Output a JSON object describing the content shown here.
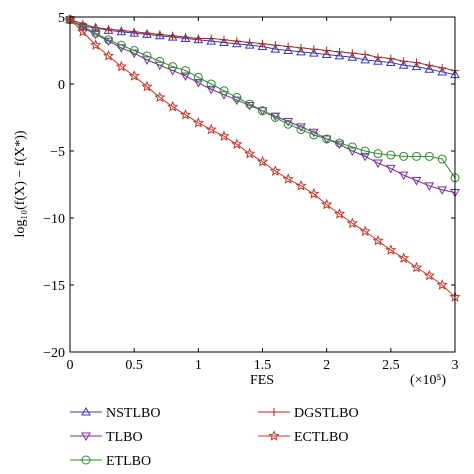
{
  "chart_data": {
    "type": "line",
    "xlabel": "FES",
    "x_multiplier": "(×10⁵)",
    "ylabel": "log₁₀(f(X) − f(X*))",
    "xlim": [
      0,
      3
    ],
    "ylim": [
      -20,
      5
    ],
    "x_ticks": [
      0,
      0.5,
      1,
      1.5,
      2,
      2.5,
      3
    ],
    "y_ticks": [
      5,
      0,
      -5,
      -10,
      -15,
      -20
    ],
    "x_tick_labels": [
      "0",
      "0.5",
      "1",
      "1.5",
      "2",
      "2.5",
      "3"
    ],
    "y_tick_labels": [
      "5",
      "0",
      "−5",
      "−10",
      "−15",
      "−20"
    ],
    "legend_position": "bottom",
    "series": [
      {
        "name": "NSTLBO",
        "color": "#3a3aa8",
        "marker": "triangle-up",
        "x": [
          0,
          0.1,
          0.2,
          0.3,
          0.4,
          0.5,
          0.6,
          0.7,
          0.8,
          0.9,
          1.0,
          1.1,
          1.2,
          1.3,
          1.4,
          1.5,
          1.6,
          1.7,
          1.8,
          1.9,
          2.0,
          2.1,
          2.2,
          2.3,
          2.4,
          2.5,
          2.6,
          2.7,
          2.8,
          2.9,
          3.0
        ],
        "y": [
          4.8,
          4.3,
          4.2,
          4.0,
          3.9,
          3.8,
          3.7,
          3.6,
          3.5,
          3.4,
          3.3,
          3.2,
          3.1,
          3.0,
          2.9,
          2.8,
          2.6,
          2.5,
          2.4,
          2.3,
          2.2,
          2.1,
          2.0,
          1.8,
          1.7,
          1.6,
          1.4,
          1.3,
          1.1,
          0.9,
          0.7
        ]
      },
      {
        "name": "TLBO",
        "color": "#7b2f9e",
        "marker": "triangle-down",
        "x": [
          0,
          0.1,
          0.2,
          0.3,
          0.4,
          0.5,
          0.6,
          0.7,
          0.8,
          0.9,
          1.0,
          1.1,
          1.2,
          1.3,
          1.4,
          1.5,
          1.6,
          1.7,
          1.8,
          1.9,
          2.0,
          2.1,
          2.2,
          2.3,
          2.4,
          2.5,
          2.6,
          2.7,
          2.8,
          2.9,
          3.0
        ],
        "y": [
          4.8,
          4.2,
          3.7,
          3.2,
          2.7,
          2.3,
          1.8,
          1.4,
          1.0,
          0.6,
          0.1,
          -0.4,
          -0.8,
          -1.2,
          -1.6,
          -2.0,
          -2.4,
          -2.8,
          -3.2,
          -3.6,
          -4.1,
          -4.5,
          -5.0,
          -5.4,
          -5.9,
          -6.3,
          -6.8,
          -7.2,
          -7.6,
          -7.9,
          -8.1
        ]
      },
      {
        "name": "ETLBO",
        "color": "#2e8b2e",
        "marker": "circle",
        "x": [
          0,
          0.1,
          0.2,
          0.3,
          0.4,
          0.5,
          0.6,
          0.7,
          0.8,
          0.9,
          1.0,
          1.1,
          1.2,
          1.3,
          1.4,
          1.5,
          1.6,
          1.7,
          1.8,
          1.9,
          2.0,
          2.1,
          2.2,
          2.3,
          2.4,
          2.5,
          2.6,
          2.7,
          2.8,
          2.9,
          3.0
        ],
        "y": [
          4.8,
          4.3,
          3.8,
          3.3,
          2.9,
          2.5,
          2.1,
          1.7,
          1.3,
          1.0,
          0.5,
          0.0,
          -0.5,
          -1.0,
          -1.5,
          -2.0,
          -2.5,
          -3.0,
          -3.4,
          -3.8,
          -4.1,
          -4.4,
          -4.7,
          -5.0,
          -5.2,
          -5.3,
          -5.4,
          -5.4,
          -5.4,
          -5.6,
          -7.0
        ]
      },
      {
        "name": "DGSTLBO",
        "color": "#a52a2a",
        "marker": "plus",
        "x": [
          0,
          0.1,
          0.2,
          0.3,
          0.4,
          0.5,
          0.6,
          0.7,
          0.8,
          0.9,
          1.0,
          1.1,
          1.2,
          1.3,
          1.4,
          1.5,
          1.6,
          1.7,
          1.8,
          1.9,
          2.0,
          2.1,
          2.2,
          2.3,
          2.4,
          2.5,
          2.6,
          2.7,
          2.8,
          2.9,
          3.0
        ],
        "y": [
          4.8,
          4.5,
          4.2,
          4.1,
          4.0,
          3.9,
          3.8,
          3.7,
          3.6,
          3.5,
          3.4,
          3.4,
          3.3,
          3.2,
          3.1,
          3.0,
          2.9,
          2.8,
          2.7,
          2.6,
          2.5,
          2.4,
          2.3,
          2.2,
          2.0,
          1.9,
          1.7,
          1.6,
          1.4,
          1.2,
          1.0
        ]
      },
      {
        "name": "ECTLBO",
        "color": "#c0392b",
        "marker": "star",
        "x": [
          0,
          0.1,
          0.2,
          0.3,
          0.4,
          0.5,
          0.6,
          0.7,
          0.8,
          0.9,
          1.0,
          1.1,
          1.2,
          1.3,
          1.4,
          1.5,
          1.6,
          1.7,
          1.8,
          1.9,
          2.0,
          2.1,
          2.2,
          2.3,
          2.4,
          2.5,
          2.6,
          2.7,
          2.8,
          2.9,
          3.0
        ],
        "y": [
          4.8,
          3.9,
          2.9,
          2.1,
          1.3,
          0.6,
          -0.2,
          -1.0,
          -1.7,
          -2.3,
          -2.9,
          -3.4,
          -3.9,
          -4.5,
          -5.2,
          -5.8,
          -6.5,
          -7.1,
          -7.6,
          -8.2,
          -9.0,
          -9.7,
          -10.4,
          -11.0,
          -11.7,
          -12.4,
          -13.0,
          -13.7,
          -14.3,
          -15.0,
          -15.9
        ]
      }
    ]
  }
}
